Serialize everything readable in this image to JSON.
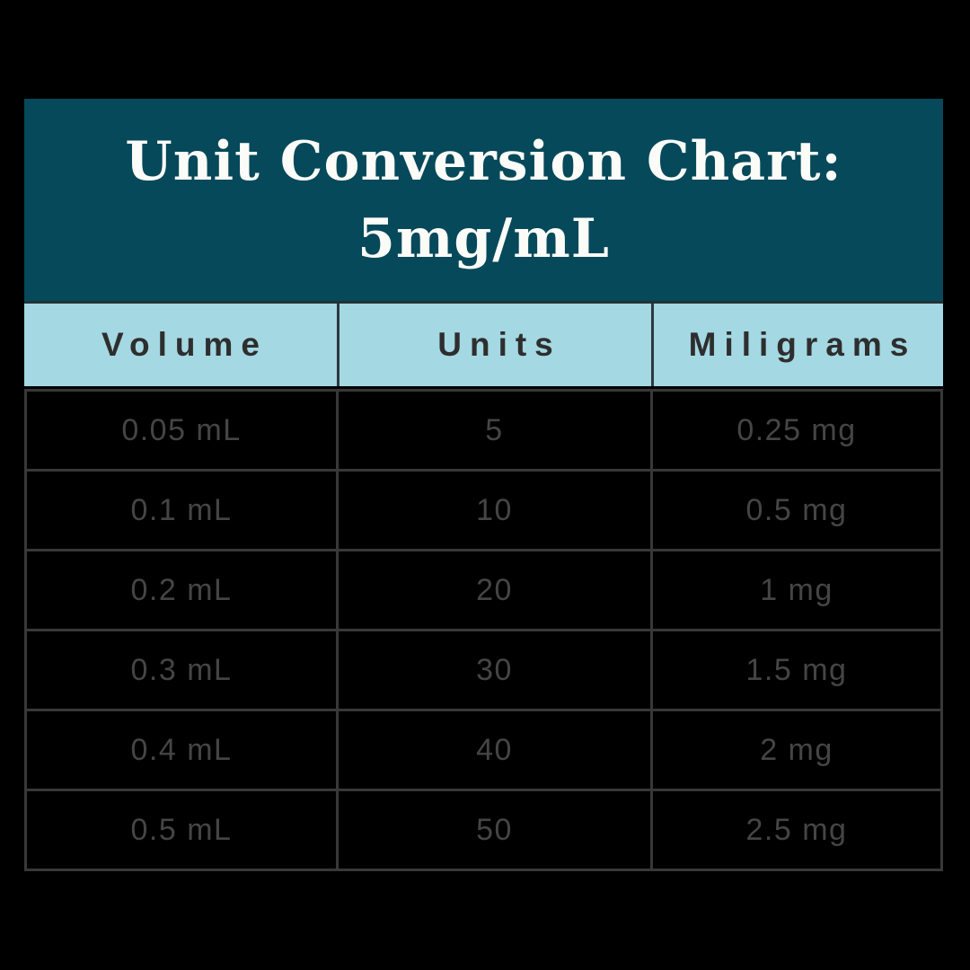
{
  "title": {
    "line1": "Unit Conversion Chart:",
    "line2": "5mg/mL"
  },
  "table": {
    "headers": [
      "Volume",
      "Units",
      "Miligrams"
    ],
    "rows": [
      [
        "0.05 mL",
        "5",
        "0.25 mg"
      ],
      [
        "0.1 mL",
        "10",
        "0.5 mg"
      ],
      [
        "0.2 mL",
        "20",
        "1 mg"
      ],
      [
        "0.3 mL",
        "30",
        "1.5 mg"
      ],
      [
        "0.4 mL",
        "40",
        "2 mg"
      ],
      [
        "0.5 mL",
        "50",
        "2.5 mg"
      ]
    ]
  },
  "colors": {
    "background": "#000000",
    "title_band": "#05495a",
    "title_text": "#fbfbf8",
    "header_row_background": "#a4d8e3",
    "header_text": "#2e2e2e",
    "cell_text": "#454545",
    "grid_line": "#383838"
  },
  "chart_data": {
    "type": "table",
    "title": "Unit Conversion Chart: 5mg/mL",
    "concentration": "5mg/mL",
    "columns": [
      "Volume",
      "Units",
      "Miligrams"
    ],
    "rows": [
      {
        "volume": "0.05 mL",
        "units": 5,
        "milligrams": "0.25 mg"
      },
      {
        "volume": "0.1 mL",
        "units": 10,
        "milligrams": "0.5 mg"
      },
      {
        "volume": "0.2 mL",
        "units": 20,
        "milligrams": "1 mg"
      },
      {
        "volume": "0.3 mL",
        "units": 30,
        "milligrams": "1.5 mg"
      },
      {
        "volume": "0.4 mL",
        "units": 40,
        "milligrams": "2 mg"
      },
      {
        "volume": "0.5 mL",
        "units": 50,
        "milligrams": "2.5 mg"
      }
    ]
  }
}
